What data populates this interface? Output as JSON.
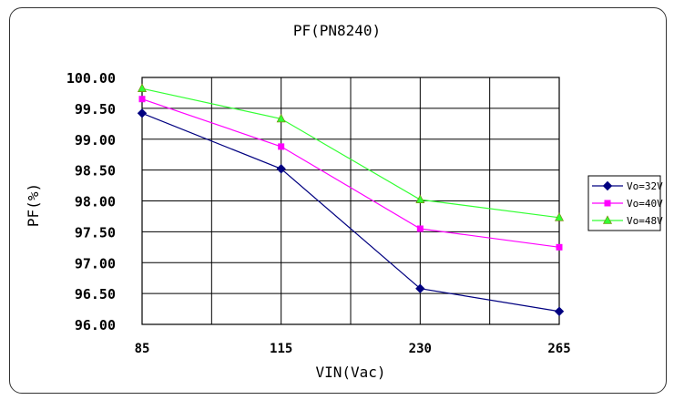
{
  "chart_data": {
    "type": "line",
    "title": "PF(PN8240)",
    "xlabel": "VIN(Vac)",
    "ylabel": "PF(%)",
    "categories": [
      "85",
      "115",
      "230",
      "265"
    ],
    "y_ticks": [
      "96.00",
      "96.50",
      "97.00",
      "97.50",
      "98.00",
      "98.50",
      "99.00",
      "99.50",
      "100.00"
    ],
    "ylim": [
      96.0,
      100.0
    ],
    "grid": true,
    "legend_position": "right",
    "series": [
      {
        "name": "Vo=32V",
        "color": "#000080",
        "marker": "diamond",
        "values": [
          99.42,
          98.52,
          96.58,
          96.21
        ]
      },
      {
        "name": "Vo=40V",
        "color": "#ff00ff",
        "marker": "square",
        "values": [
          99.65,
          98.88,
          97.55,
          97.25
        ]
      },
      {
        "name": "Vo=48V",
        "color": "#33ff33",
        "marker": "triangle",
        "values": [
          99.82,
          99.33,
          98.02,
          97.73
        ]
      }
    ]
  }
}
